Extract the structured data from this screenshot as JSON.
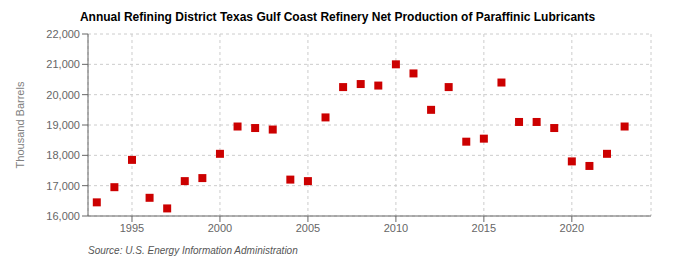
{
  "chart_data": {
    "type": "scatter",
    "title": "Annual Refining District Texas Gulf Coast Refinery Net Production of Paraffinic Lubricants",
    "ylabel": "Thousand Barrels",
    "annotation": "Source: U.S. Energy Information Administration",
    "x": [
      1993,
      1994,
      1995,
      1996,
      1997,
      1998,
      1999,
      2000,
      2001,
      2002,
      2003,
      2004,
      2005,
      2006,
      2007,
      2008,
      2009,
      2010,
      2011,
      2012,
      2013,
      2014,
      2015,
      2016,
      2017,
      2018,
      2019,
      2020,
      2021,
      2022,
      2023
    ],
    "values": [
      16450,
      16950,
      17850,
      16600,
      16250,
      17150,
      17250,
      18050,
      18950,
      18900,
      18850,
      17200,
      17150,
      19250,
      20250,
      20350,
      20300,
      21000,
      20700,
      19500,
      20250,
      18450,
      18550,
      20400,
      19100,
      19100,
      18900,
      17800,
      17650,
      18050,
      18950
    ],
    "color": "#cc0000",
    "marker": "square",
    "xlim": [
      1992.5,
      2024.5
    ],
    "xticks": [
      1995,
      2000,
      2005,
      2010,
      2015,
      2020
    ],
    "ylim": [
      16000,
      22000
    ],
    "yticks": [
      {
        "value": 16000,
        "label": "16,000"
      },
      {
        "value": 17000,
        "label": "17,000"
      },
      {
        "value": 18000,
        "label": "18,000"
      },
      {
        "value": 19000,
        "label": "19,000"
      },
      {
        "value": 20000,
        "label": "20,000"
      },
      {
        "value": 21000,
        "label": "21,000"
      },
      {
        "value": 22000,
        "label": "22,000"
      }
    ],
    "grid": true
  }
}
